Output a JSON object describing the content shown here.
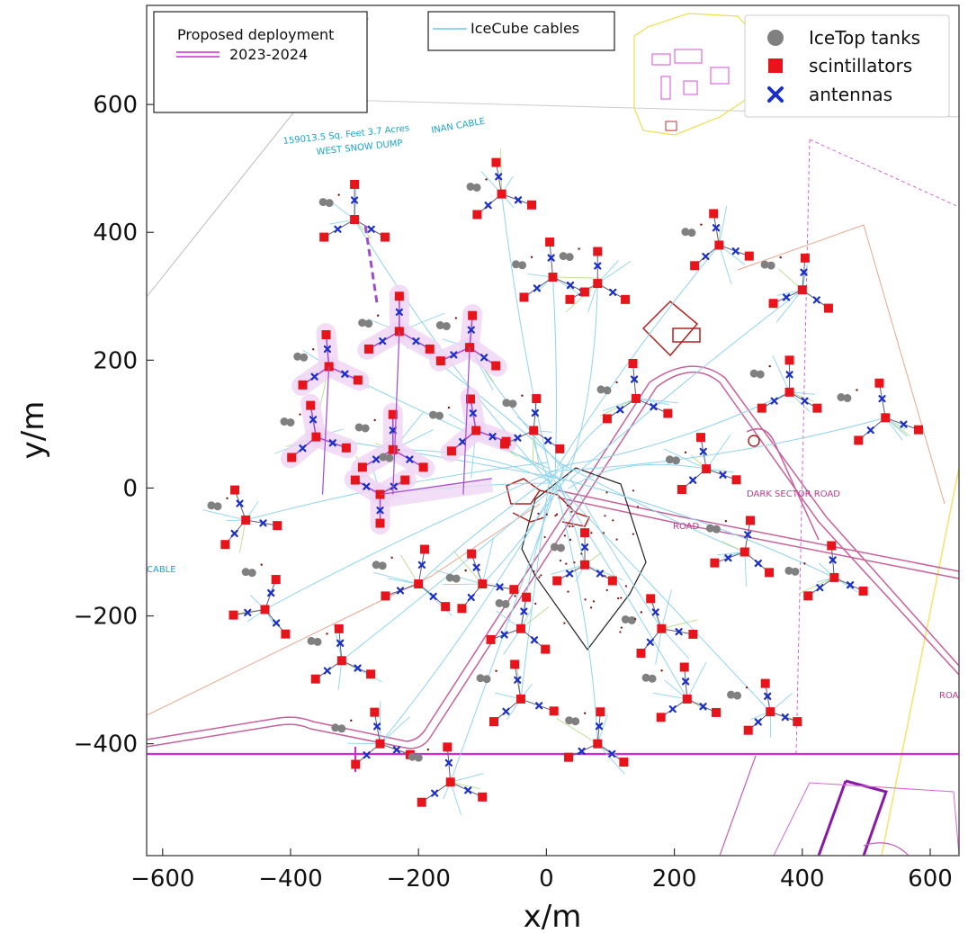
{
  "chart_data": {
    "type": "scatter",
    "title": "",
    "xlabel": "x/m",
    "ylabel": "y/m",
    "xlim": [
      -625,
      645
    ],
    "ylim": [
      -575,
      755
    ],
    "xticks": [
      -600,
      -400,
      -200,
      0,
      200,
      400,
      600
    ],
    "yticks": [
      -400,
      -200,
      0,
      200,
      400,
      600
    ],
    "tick_labels_x": [
      "−600",
      "−400",
      "−200",
      "0",
      "200",
      "400",
      "600"
    ],
    "tick_labels_y": [
      "−400",
      "−200",
      "0",
      "200",
      "400",
      "600"
    ],
    "grid": false,
    "legend_position": "top-right",
    "legend": [
      {
        "name": "IceTop tanks",
        "marker": "circle",
        "color": "#808080"
      },
      {
        "name": "scintillators",
        "marker": "square",
        "color": "#e8141c"
      },
      {
        "name": "antennas",
        "marker": "x",
        "color": "#1a2fc9"
      }
    ],
    "legend_cables": "IceCube cables",
    "legend_deployment_title": "Proposed deployment",
    "legend_deployment_years": "2023-2024",
    "map_labels": {
      "dump": "159013.5 Sq. Feet 3.7 Acres",
      "dump2": "WEST SNOW DUMP",
      "cable": "INAN CABLE",
      "dark_sector_road": "DARK SECTOR ROAD",
      "road": "ROAD",
      "cable_left": "CABLE",
      "road_right": "ROA"
    },
    "stations": [
      {
        "x": -340,
        "y": 190,
        "r": 50,
        "rot": 95,
        "dep": true
      },
      {
        "x": -230,
        "y": 245,
        "r": 55,
        "rot": 90,
        "dep": true
      },
      {
        "x": -120,
        "y": 220,
        "r": 50,
        "rot": 85,
        "dep": true
      },
      {
        "x": -300,
        "y": 420,
        "r": 55,
        "rot": 90,
        "dep": false
      },
      {
        "x": -360,
        "y": 80,
        "r": 50,
        "rot": 100,
        "dep": true
      },
      {
        "x": -240,
        "y": 60,
        "r": 55,
        "rot": 90,
        "dep": true
      },
      {
        "x": -110,
        "y": 90,
        "r": 50,
        "rot": 100,
        "dep": true
      },
      {
        "x": -260,
        "y": -10,
        "r": 45,
        "rot": 30,
        "dep": true
      },
      {
        "x": -470,
        "y": -50,
        "r": 50,
        "rot": 110,
        "dep": false
      },
      {
        "x": -440,
        "y": -190,
        "r": 50,
        "rot": 70,
        "dep": false
      },
      {
        "x": -320,
        "y": -270,
        "r": 50,
        "rot": 95,
        "dep": false
      },
      {
        "x": -200,
        "y": -150,
        "r": 55,
        "rot": 80,
        "dep": false
      },
      {
        "x": -100,
        "y": -150,
        "r": 50,
        "rot": 110,
        "dep": false
      },
      {
        "x": -260,
        "y": -400,
        "r": 50,
        "rot": 100,
        "dep": false
      },
      {
        "x": -150,
        "y": -460,
        "r": 55,
        "rot": 95,
        "dep": false
      },
      {
        "x": -40,
        "y": -220,
        "r": 50,
        "rot": 80,
        "dep": false
      },
      {
        "x": 60,
        "y": -120,
        "r": 50,
        "rot": 90,
        "dep": false
      },
      {
        "x": -40,
        "y": -330,
        "r": 55,
        "rot": 100,
        "dep": false
      },
      {
        "x": 80,
        "y": -400,
        "r": 50,
        "rot": 85,
        "dep": false
      },
      {
        "x": 180,
        "y": -220,
        "r": 50,
        "rot": 110,
        "dep": false
      },
      {
        "x": 220,
        "y": -330,
        "r": 50,
        "rot": 95,
        "dep": false
      },
      {
        "x": 350,
        "y": -350,
        "r": 45,
        "rot": 100,
        "dep": false
      },
      {
        "x": 310,
        "y": -100,
        "r": 50,
        "rot": 80,
        "dep": false
      },
      {
        "x": 450,
        "y": -140,
        "r": 50,
        "rot": 95,
        "dep": false
      },
      {
        "x": 250,
        "y": 30,
        "r": 50,
        "rot": 100,
        "dep": false
      },
      {
        "x": 380,
        "y": 150,
        "r": 50,
        "rot": 90,
        "dep": false
      },
      {
        "x": 530,
        "y": 110,
        "r": 55,
        "rot": 100,
        "dep": false
      },
      {
        "x": 400,
        "y": 310,
        "r": 50,
        "rot": 85,
        "dep": false
      },
      {
        "x": 270,
        "y": 380,
        "r": 50,
        "rot": 100,
        "dep": false
      },
      {
        "x": 140,
        "y": 140,
        "r": 55,
        "rot": 95,
        "dep": false
      },
      {
        "x": 80,
        "y": 320,
        "r": 50,
        "rot": 90,
        "dep": false
      },
      {
        "x": 10,
        "y": 330,
        "r": 55,
        "rot": 95,
        "dep": false
      },
      {
        "x": -70,
        "y": 460,
        "r": 50,
        "rot": 100,
        "dep": false
      },
      {
        "x": -20,
        "y": 90,
        "r": 50,
        "rot": 85,
        "dep": false
      }
    ]
  }
}
